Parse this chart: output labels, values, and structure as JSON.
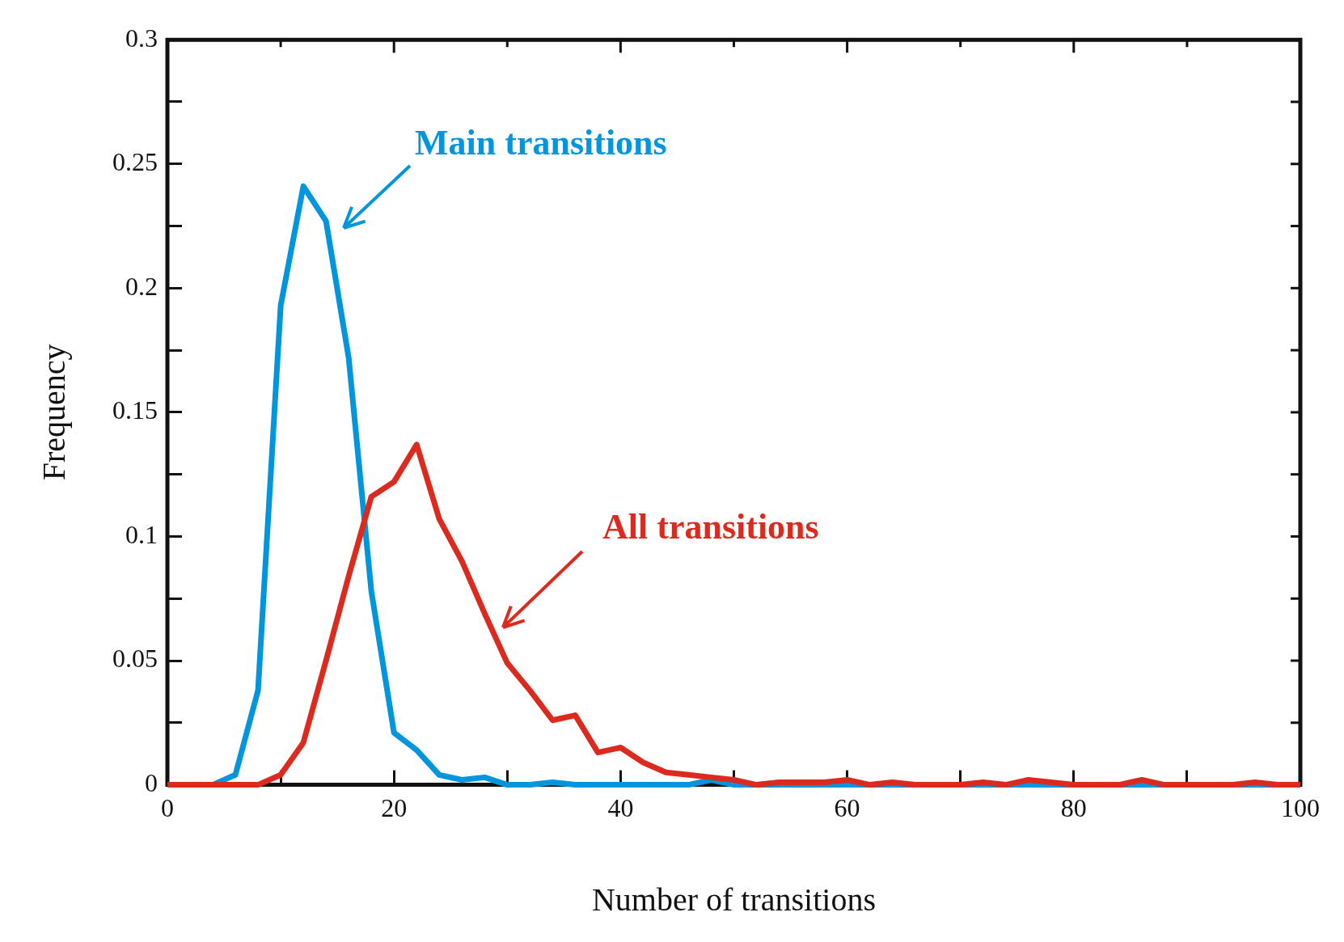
{
  "chart_data": {
    "type": "line",
    "xlabel": "Number of transitions",
    "ylabel": "Frequency",
    "x": [
      0,
      2,
      4,
      6,
      8,
      10,
      12,
      14,
      16,
      18,
      20,
      22,
      24,
      26,
      28,
      30,
      32,
      34,
      36,
      38,
      40,
      42,
      44,
      46,
      48,
      50,
      52,
      54,
      56,
      58,
      60,
      62,
      64,
      66,
      68,
      70,
      72,
      74,
      76,
      78,
      80,
      82,
      84,
      86,
      88,
      90,
      92,
      94,
      96,
      98,
      100
    ],
    "series": [
      {
        "color": "#dc2a1e",
        "values": [
          0,
          0,
          0,
          0,
          0,
          0.004,
          0.017,
          0.05,
          0.084,
          0.116,
          0.122,
          0.137,
          0.107,
          0.09,
          0.069,
          0.049,
          0.038,
          0.026,
          0.028,
          0.013,
          0.015,
          0.009,
          0.005,
          0.004,
          0.003,
          0.002,
          0,
          0.001,
          0.001,
          0.001,
          0.002,
          0,
          0.001,
          0,
          0,
          0,
          0.001,
          0,
          0.002,
          0.001,
          0,
          0,
          0,
          0.002,
          0,
          0,
          0,
          0,
          0.001,
          0,
          0
        ]
      },
      {
        "color": "#0095dc",
        "values": [
          0,
          0,
          0,
          0.004,
          0.038,
          0.193,
          0.241,
          0.227,
          0.172,
          0.078,
          0.021,
          0.014,
          0.004,
          0.002,
          0.003,
          0,
          0,
          0.001,
          0,
          0,
          0,
          0,
          0,
          0,
          0.002,
          0,
          0,
          0,
          0,
          0,
          0,
          0,
          0,
          0,
          0,
          0,
          0,
          0,
          0,
          0,
          0,
          0,
          0,
          0,
          0,
          0,
          0,
          0,
          0,
          0,
          0
        ]
      }
    ],
    "annotations": [
      "All transitions",
      "Main transitions"
    ],
    "xlim": [
      0,
      100
    ],
    "ylim": [
      0,
      0.3
    ],
    "xticks": [
      0,
      {
        "value": 10,
        "label": null
      },
      20,
      {
        "value": 30,
        "label": null
      },
      40,
      {
        "value": 50,
        "label": null
      },
      60,
      {
        "value": 70,
        "label": null
      },
      80,
      {
        "value": 90,
        "label": null
      },
      100
    ],
    "yticks": [
      0,
      {
        "value": 0.025,
        "label": null
      },
      0.05,
      {
        "value": 0.075,
        "label": null
      },
      0.1,
      {
        "value": 0.125,
        "label": null
      },
      0.15,
      {
        "value": 0.175,
        "label": null
      },
      0.2,
      {
        "value": 0.225,
        "label": null
      },
      0.25,
      {
        "value": 0.275,
        "label": null
      },
      0.3
    ],
    "grid": false,
    "legend": false,
    "marker": "none",
    "line_style": "solid"
  }
}
